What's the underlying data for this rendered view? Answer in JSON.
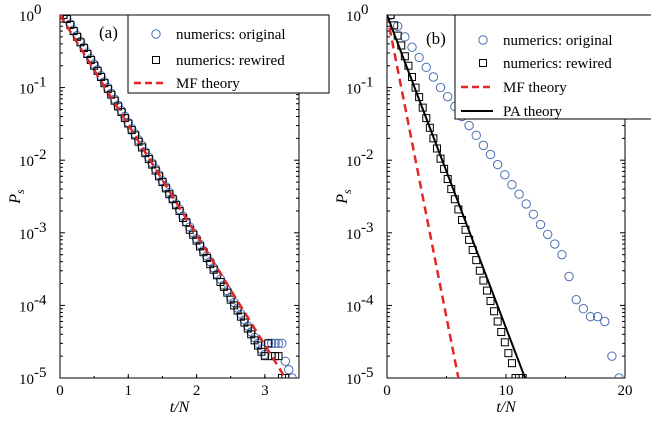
{
  "chart_data": [
    {
      "type": "scatter",
      "panel_label": "(a)",
      "xlabel": "t/N",
      "ylabel": "P",
      "ylabel_sub": "s",
      "xlim": [
        0,
        3.5
      ],
      "ylim_log10": [
        -5,
        0
      ],
      "y_scale": "log",
      "grid": false,
      "legend_position": "top-right",
      "xticks": [
        0,
        1,
        2,
        3
      ],
      "xtick_labels": [
        "0",
        "1",
        "2",
        "3"
      ],
      "yticks_exp": [
        0,
        -1,
        -2,
        -3,
        -4,
        -5
      ],
      "ytick_labels": [
        "10",
        "10",
        "10",
        "10",
        "10",
        "10"
      ],
      "ytick_exps": [
        "0",
        "-1",
        "-2",
        "-3",
        "-4",
        "-5"
      ],
      "series": [
        {
          "name": "numerics: original",
          "marker": "circle",
          "color": "#4a6fb5",
          "x": [
            0.05,
            0.1,
            0.15,
            0.2,
            0.25,
            0.3,
            0.35,
            0.4,
            0.45,
            0.5,
            0.55,
            0.6,
            0.65,
            0.7,
            0.75,
            0.8,
            0.85,
            0.9,
            0.95,
            1.0,
            1.05,
            1.1,
            1.15,
            1.2,
            1.25,
            1.3,
            1.35,
            1.4,
            1.45,
            1.5,
            1.55,
            1.6,
            1.65,
            1.7,
            1.75,
            1.8,
            1.85,
            1.9,
            1.95,
            2.0,
            2.05,
            2.1,
            2.15,
            2.2,
            2.25,
            2.3,
            2.35,
            2.4,
            2.45,
            2.5,
            2.55,
            2.6,
            2.65,
            2.7,
            2.75,
            2.8,
            2.85,
            2.9,
            2.95,
            3.0,
            3.05,
            3.1,
            3.15,
            3.2,
            3.25,
            3.3,
            3.35,
            3.4
          ],
          "y": [
            1.0,
            0.9,
            0.75,
            0.62,
            0.52,
            0.43,
            0.36,
            0.3,
            0.25,
            0.21,
            0.175,
            0.145,
            0.12,
            0.1,
            0.083,
            0.069,
            0.057,
            0.048,
            0.04,
            0.033,
            0.027,
            0.023,
            0.019,
            0.016,
            0.013,
            0.011,
            0.0091,
            0.0076,
            0.0063,
            0.0052,
            0.0043,
            0.0036,
            0.003,
            0.0025,
            0.0021,
            0.0017,
            0.0014,
            0.0012,
            0.001,
            0.00083,
            0.00069,
            0.00057,
            0.00048,
            0.0004,
            0.00033,
            0.00027,
            0.00023,
            0.00019,
            0.00016,
            0.00013,
            0.00011,
            9.17e-05,
            7.6e-05,
            6.3e-05,
            5.2e-05,
            4.3e-05,
            3.6e-05,
            3e-05,
            2.5e-05,
            2.1e-05,
            3e-05,
            3e-05,
            3e-05,
            3e-05,
            3e-05,
            1.7e-05,
            1.3e-05,
            1e-05
          ]
        },
        {
          "name": "numerics: rewired",
          "marker": "square",
          "color": "#000000",
          "x": [
            0.05,
            0.1,
            0.15,
            0.2,
            0.25,
            0.3,
            0.35,
            0.4,
            0.45,
            0.5,
            0.55,
            0.6,
            0.65,
            0.7,
            0.75,
            0.8,
            0.85,
            0.9,
            0.95,
            1.0,
            1.05,
            1.1,
            1.15,
            1.2,
            1.25,
            1.3,
            1.35,
            1.4,
            1.45,
            1.5,
            1.55,
            1.6,
            1.65,
            1.7,
            1.75,
            1.8,
            1.85,
            1.9,
            1.95,
            2.0,
            2.05,
            2.1,
            2.15,
            2.2,
            2.25,
            2.3,
            2.35,
            2.4,
            2.45,
            2.5,
            2.55,
            2.6,
            2.65,
            2.7,
            2.75,
            2.8,
            2.85,
            2.9,
            2.95,
            3.0,
            3.05,
            3.1,
            3.15,
            3.2,
            3.25,
            3.3
          ],
          "y": [
            1.0,
            0.88,
            0.73,
            0.6,
            0.5,
            0.42,
            0.35,
            0.29,
            0.24,
            0.2,
            0.17,
            0.14,
            0.115,
            0.096,
            0.08,
            0.066,
            0.055,
            0.046,
            0.038,
            0.032,
            0.026,
            0.022,
            0.018,
            0.015,
            0.0125,
            0.0104,
            0.0087,
            0.0072,
            0.006,
            0.005,
            0.0041,
            0.0034,
            0.0029,
            0.0024,
            0.002,
            0.0016,
            0.0014,
            0.0011,
            0.00094,
            0.00078,
            0.00065,
            0.00054,
            0.00045,
            0.00037,
            0.00031,
            0.00026,
            0.00021,
            0.00018,
            0.00015,
            0.00012,
            0.0001,
            8.5e-05,
            7e-05,
            5.8e-05,
            4.8e-05,
            4e-05,
            3.3e-05,
            2.8e-05,
            2.3e-05,
            2e-05,
            3e-05,
            2e-05,
            2e-05,
            2e-05,
            1e-05,
            1e-05
          ]
        },
        {
          "name": "MF theory",
          "line": "dashed",
          "color": "#e32626",
          "x": [
            0,
            3.3
          ],
          "y": [
            1.0,
            1e-05
          ]
        }
      ]
    },
    {
      "type": "scatter",
      "panel_label": "(b)",
      "xlabel": "t/N",
      "ylabel": "P",
      "ylabel_sub": "s",
      "xlim": [
        0,
        20
      ],
      "ylim_log10": [
        -5,
        0
      ],
      "y_scale": "log",
      "grid": false,
      "legend_position": "top-right",
      "xticks": [
        0,
        10,
        20
      ],
      "xtick_labels": [
        "0",
        "10",
        "20"
      ],
      "yticks_exp": [
        0,
        -1,
        -2,
        -3,
        -4,
        -5
      ],
      "ytick_labels": [
        "10",
        "10",
        "10",
        "10",
        "10",
        "10"
      ],
      "ytick_exps": [
        "0",
        "-1",
        "-2",
        "-3",
        "-4",
        "-5"
      ],
      "series": [
        {
          "name": "numerics: original",
          "marker": "circle",
          "color": "#4a6fb5",
          "x": [
            0.3,
            0.9,
            1.5,
            2.1,
            2.7,
            3.3,
            3.9,
            4.5,
            5.1,
            5.7,
            6.3,
            6.9,
            7.5,
            8.1,
            8.7,
            9.3,
            9.9,
            10.5,
            11.1,
            11.7,
            12.3,
            12.9,
            13.5,
            14.1,
            14.7,
            15.3,
            15.9,
            16.5,
            17.1,
            17.7,
            18.3,
            18.9,
            19.5
          ],
          "y": [
            1.0,
            0.7,
            0.5,
            0.36,
            0.26,
            0.19,
            0.14,
            0.1,
            0.075,
            0.055,
            0.04,
            0.03,
            0.022,
            0.016,
            0.012,
            0.0087,
            0.0063,
            0.0046,
            0.0034,
            0.0025,
            0.0018,
            0.0013,
            0.00095,
            0.0007,
            0.0005,
            0.00025,
            0.00012,
            9e-05,
            7e-05,
            7e-05,
            6e-05,
            2e-05,
            1e-05
          ]
        },
        {
          "name": "numerics: rewired",
          "marker": "square",
          "color": "#000000",
          "x": [
            0.3,
            0.6,
            0.9,
            1.2,
            1.5,
            1.8,
            2.1,
            2.4,
            2.7,
            3.0,
            3.3,
            3.6,
            3.9,
            4.2,
            4.5,
            4.8,
            5.1,
            5.4,
            5.7,
            6.0,
            6.3,
            6.6,
            6.9,
            7.2,
            7.5,
            7.8,
            8.1,
            8.4,
            8.7,
            9.0,
            9.3,
            9.6,
            9.9,
            10.2,
            10.5,
            10.8,
            11.1,
            11.4
          ],
          "y": [
            1.0,
            0.72,
            0.52,
            0.38,
            0.27,
            0.2,
            0.14,
            0.1,
            0.074,
            0.053,
            0.038,
            0.028,
            0.02,
            0.0145,
            0.0105,
            0.0076,
            0.0055,
            0.004,
            0.0029,
            0.0021,
            0.0015,
            0.0011,
            0.0008,
            0.00058,
            0.00042,
            0.0003,
            0.00022,
            0.00016,
            0.000115,
            8.3e-05,
            6e-05,
            4.3e-05,
            3.1e-05,
            2.2e-05,
            1.6e-05,
            1e-05,
            1e-05,
            1e-05
          ]
        },
        {
          "name": "MF theory",
          "line": "dashed",
          "color": "#e32626",
          "x": [
            0,
            6.0
          ],
          "y": [
            1.0,
            1e-05
          ]
        },
        {
          "name": "PA theory",
          "line": "solid",
          "color": "#000000",
          "x": [
            0,
            11.6
          ],
          "y": [
            1.0,
            1e-05
          ]
        }
      ]
    }
  ]
}
